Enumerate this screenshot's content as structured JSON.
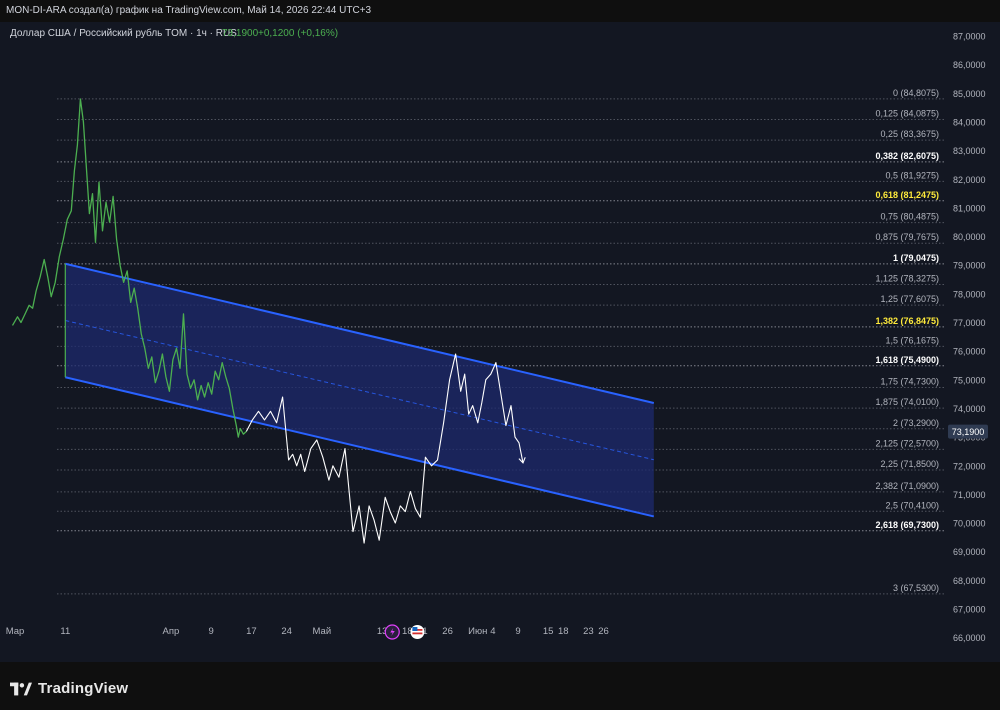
{
  "header": {
    "title": "MON-DI-ARA создал(а) график на TradingView.com, Май 14, 2026 22:44 UTC+3"
  },
  "legend": {
    "symbol": "Доллар США / Российский рубль TOM · 1ч · RUS",
    "price": "73,1900",
    "change": "+0,1200 (+0,16%)"
  },
  "footer": {
    "logo_text": "TradingView"
  },
  "colors": {
    "background": "#131722",
    "price_line": "#4caf50",
    "projection_line": "#ffffff",
    "channel_line": "#2962ff",
    "channel_fill": "#1e2a6e",
    "fib_highlight": "#ffeb3b",
    "grid": "#2a2e39",
    "axis_text": "#b2b5be",
    "last_price_badge": "#2f3b52"
  },
  "chart_data": {
    "type": "line",
    "y_scale": {
      "min": 66.0,
      "max": 87.0,
      "step": 1.0,
      "ticks": [
        "87,0000",
        "86,0000",
        "85,0000",
        "84,0000",
        "83,0000",
        "82,0000",
        "81,0000",
        "80,0000",
        "79,0000",
        "78,0000",
        "77,0000",
        "76,0000",
        "75,0000",
        "74,0000",
        "73,0000",
        "72,0000",
        "71,0000",
        "70,0000",
        "69,0000",
        "68,0000",
        "67,0000",
        "66,0000"
      ]
    },
    "x_labels": [
      {
        "label": "Мар",
        "day": 0
      },
      {
        "label": "11",
        "day": 10
      },
      {
        "label": "Апр",
        "day": 31
      },
      {
        "label": "9",
        "day": 39
      },
      {
        "label": "17",
        "day": 47
      },
      {
        "label": "24",
        "day": 54
      },
      {
        "label": "Май",
        "day": 61
      },
      {
        "label": "13",
        "day": 73
      },
      {
        "label": "18",
        "day": 78
      },
      {
        "label": "21",
        "day": 81
      },
      {
        "label": "26",
        "day": 86
      },
      {
        "label": "Июн",
        "day": 92
      },
      {
        "label": "4",
        "day": 95
      },
      {
        "label": "9",
        "day": 100
      },
      {
        "label": "15",
        "day": 106
      },
      {
        "label": "18",
        "day": 109
      },
      {
        "label": "23",
        "day": 114
      },
      {
        "label": "26",
        "day": 117
      }
    ],
    "price_series": {
      "name": "USD/RUB TOM",
      "points": [
        [
          -0.5,
          76.9
        ],
        [
          0.5,
          77.2
        ],
        [
          1.2,
          77.0
        ],
        [
          2,
          77.3
        ],
        [
          2.8,
          77.6
        ],
        [
          3.5,
          77.5
        ],
        [
          4.2,
          78.1
        ],
        [
          5,
          78.6
        ],
        [
          5.8,
          79.2
        ],
        [
          6.5,
          78.6
        ],
        [
          7.2,
          77.9
        ],
        [
          8,
          78.4
        ],
        [
          8.8,
          79.3
        ],
        [
          9.6,
          79.9
        ],
        [
          10.4,
          80.6
        ],
        [
          11.2,
          80.9
        ],
        [
          11.8,
          82.3
        ],
        [
          12.4,
          83.2
        ],
        [
          13,
          84.8
        ],
        [
          13.6,
          84.0
        ],
        [
          14.2,
          82.4
        ],
        [
          14.8,
          80.8
        ],
        [
          15.4,
          81.5
        ],
        [
          16,
          79.8
        ],
        [
          16.7,
          81.9
        ],
        [
          17.4,
          80.2
        ],
        [
          18.1,
          81.2
        ],
        [
          18.8,
          80.5
        ],
        [
          19.5,
          81.4
        ],
        [
          20.2,
          79.9
        ],
        [
          20.9,
          79.0
        ],
        [
          21.6,
          78.4
        ],
        [
          22.3,
          78.8
        ],
        [
          23,
          77.7
        ],
        [
          23.7,
          78.2
        ],
        [
          24.4,
          77.5
        ],
        [
          25.1,
          76.6
        ],
        [
          25.8,
          76.1
        ],
        [
          26.5,
          75.4
        ],
        [
          27.2,
          75.8
        ],
        [
          27.9,
          74.9
        ],
        [
          28.6,
          75.3
        ],
        [
          29.3,
          75.9
        ],
        [
          30,
          75.1
        ],
        [
          30.7,
          74.6
        ],
        [
          31.4,
          75.7
        ],
        [
          32.1,
          76.1
        ],
        [
          32.8,
          75.4
        ],
        [
          33.5,
          77.3
        ],
        [
          34.2,
          75.2
        ],
        [
          34.9,
          74.7
        ],
        [
          35.6,
          75.0
        ],
        [
          36.3,
          74.3
        ],
        [
          37,
          74.8
        ],
        [
          37.7,
          74.4
        ],
        [
          38.4,
          74.9
        ],
        [
          39.1,
          74.5
        ],
        [
          39.8,
          75.3
        ],
        [
          40.5,
          75.0
        ],
        [
          41.2,
          75.6
        ],
        [
          41.9,
          75.1
        ],
        [
          42.6,
          74.7
        ],
        [
          43.3,
          74.0
        ],
        [
          44,
          73.4
        ],
        [
          44.4,
          73.0
        ],
        [
          44.8,
          73.3
        ],
        [
          45.4,
          73.1
        ],
        [
          46,
          73.2
        ]
      ]
    },
    "projection_series": {
      "name": "projection",
      "points": [
        [
          46,
          73.2
        ],
        [
          47.2,
          73.6
        ],
        [
          48.4,
          73.9
        ],
        [
          49.6,
          73.6
        ],
        [
          50.8,
          73.9
        ],
        [
          52,
          73.5
        ],
        [
          53.2,
          74.4
        ],
        [
          54.4,
          72.2
        ],
        [
          55.2,
          72.4
        ],
        [
          56,
          72.0
        ],
        [
          56.8,
          72.4
        ],
        [
          57.6,
          71.8
        ],
        [
          58.8,
          72.6
        ],
        [
          60,
          72.9
        ],
        [
          61.2,
          72.3
        ],
        [
          62.4,
          71.5
        ],
        [
          63.2,
          72.0
        ],
        [
          64.4,
          71.6
        ],
        [
          65.6,
          72.6
        ],
        [
          67.2,
          69.7
        ],
        [
          68.4,
          70.6
        ],
        [
          69.4,
          69.3
        ],
        [
          70.4,
          70.6
        ],
        [
          71.4,
          70.1
        ],
        [
          72.4,
          69.4
        ],
        [
          73.6,
          70.9
        ],
        [
          74.6,
          70.4
        ],
        [
          75.6,
          70.0
        ],
        [
          76.6,
          70.6
        ],
        [
          77.6,
          70.4
        ],
        [
          78.6,
          71.1
        ],
        [
          79.6,
          70.5
        ],
        [
          80.6,
          70.2
        ],
        [
          81.6,
          72.3
        ],
        [
          82.8,
          72.0
        ],
        [
          84,
          72.2
        ],
        [
          85.2,
          73.5
        ],
        [
          86.4,
          75.0
        ],
        [
          87.6,
          75.9
        ],
        [
          88.6,
          74.6
        ],
        [
          89.4,
          75.2
        ],
        [
          90.2,
          73.8
        ],
        [
          91,
          74.1
        ],
        [
          92,
          73.5
        ],
        [
          92.8,
          74.2
        ],
        [
          93.6,
          75.0
        ],
        [
          94.6,
          75.2
        ],
        [
          95.6,
          75.6
        ],
        [
          96.6,
          74.5
        ],
        [
          97.6,
          73.4
        ],
        [
          98.6,
          74.1
        ],
        [
          99.4,
          73.0
        ],
        [
          100.2,
          72.8
        ],
        [
          101,
          72.1
        ]
      ]
    },
    "regression_channel": {
      "start": {
        "day": 10,
        "upper": 79.05,
        "mid": 77.07,
        "lower": 75.09
      },
      "end": {
        "day": 127,
        "upper": 74.19,
        "mid": 72.21,
        "lower": 70.23
      }
    },
    "fib_levels": [
      {
        "label": "0 (84,8075)",
        "price": 84.8075,
        "style": "normal"
      },
      {
        "label": "0,125 (84,0875)",
        "price": 84.0875,
        "style": "normal"
      },
      {
        "label": "0,25 (83,3675)",
        "price": 83.3675,
        "style": "normal"
      },
      {
        "label": "0,382 (82,6075)",
        "price": 82.6075,
        "style": "bold"
      },
      {
        "label": "0,5 (81,9275)",
        "price": 81.9275,
        "style": "normal"
      },
      {
        "label": "0,618 (81,2475)",
        "price": 81.2475,
        "style": "yellow"
      },
      {
        "label": "0,75 (80,4875)",
        "price": 80.4875,
        "style": "normal"
      },
      {
        "label": "0,875 (79,7675)",
        "price": 79.7675,
        "style": "normal"
      },
      {
        "label": "1 (79,0475)",
        "price": 79.0475,
        "style": "bold"
      },
      {
        "label": "1,125 (78,3275)",
        "price": 78.3275,
        "style": "normal"
      },
      {
        "label": "1,25 (77,6075)",
        "price": 77.6075,
        "style": "normal"
      },
      {
        "label": "1,382 (76,8475)",
        "price": 76.8475,
        "style": "yellow"
      },
      {
        "label": "1,5 (76,1675)",
        "price": 76.1675,
        "style": "normal"
      },
      {
        "label": "1,618 (75,4900)",
        "price": 75.49,
        "style": "bold"
      },
      {
        "label": "1,75 (74,7300)",
        "price": 74.73,
        "style": "normal"
      },
      {
        "label": "1,875 (74,0100)",
        "price": 74.01,
        "style": "normal"
      },
      {
        "label": "2 (73,2900)",
        "price": 73.29,
        "style": "normal"
      },
      {
        "label": "2,125 (72,5700)",
        "price": 72.57,
        "style": "normal"
      },
      {
        "label": "2,25 (71,8500)",
        "price": 71.85,
        "style": "normal"
      },
      {
        "label": "2,382 (71,0900)",
        "price": 71.09,
        "style": "normal"
      },
      {
        "label": "2,5 (70,4100)",
        "price": 70.41,
        "style": "normal"
      },
      {
        "label": "2,618 (69,7300)",
        "price": 69.73,
        "style": "bold"
      },
      {
        "label": "3 (67,5300)",
        "price": 67.53,
        "style": "normal"
      }
    ],
    "last_price": {
      "value": 73.19,
      "label": "73,1900"
    },
    "event_markers": [
      {
        "icon": "lightning-icon",
        "day": 75
      },
      {
        "icon": "us-flag-icon",
        "day": 80
      }
    ]
  }
}
